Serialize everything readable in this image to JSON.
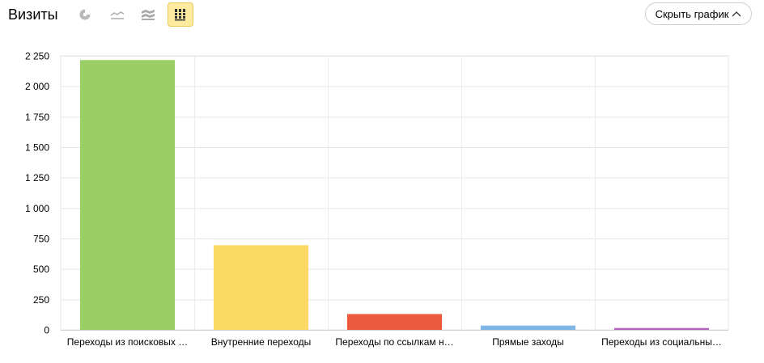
{
  "header": {
    "title": "Визиты",
    "toolbar": [
      {
        "icon": "pie-chart-icon",
        "active": false
      },
      {
        "icon": "line-chart-icon",
        "active": false
      },
      {
        "icon": "area-chart-icon",
        "active": false
      },
      {
        "icon": "bar-chart-icon",
        "active": true
      }
    ],
    "hide_chart_label": "Скрыть график"
  },
  "chart_data": {
    "type": "bar",
    "categories": [
      "Переходы из поисковых …",
      "Внутренние переходы",
      "Переходы по ссылкам н…",
      "Прямые заходы",
      "Переходы из социальны…"
    ],
    "values": [
      2215,
      695,
      130,
      35,
      15
    ],
    "colors": [
      "#99cf64",
      "#fcd965",
      "#ec5a3d",
      "#7fb5e6",
      "#b561c0"
    ],
    "ylim": [
      0,
      2250
    ],
    "yticks": [
      0,
      250,
      500,
      750,
      1000,
      1250,
      1500,
      1750,
      2000,
      2250
    ],
    "ytick_labels": [
      "0",
      "250",
      "500",
      "750",
      "1 000",
      "1 250",
      "1 500",
      "1 750",
      "2 000",
      "2 250"
    ],
    "grid": true,
    "title": "",
    "xlabel": "",
    "ylabel": ""
  }
}
